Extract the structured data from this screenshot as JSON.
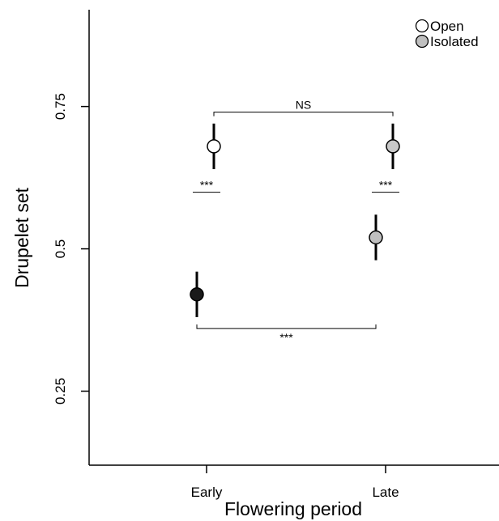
{
  "chart_data": {
    "type": "scatter",
    "xlabel": "Flowering period",
    "ylabel": "Drupelet set",
    "categories": [
      "Early",
      "Late"
    ],
    "ylim": [
      0.12,
      0.92
    ],
    "yticks": [
      0.25,
      0.5,
      0.75
    ],
    "ytick_labels": [
      "0.25",
      "0.5",
      "0.75"
    ],
    "legend": {
      "position": "top-right",
      "entries": [
        {
          "label": "Open",
          "color": "#ffffff"
        },
        {
          "label": "Isolated",
          "color": "#bfbfbf"
        }
      ]
    },
    "points": [
      {
        "category": "Early",
        "treatment": "Open",
        "y": 0.68,
        "low": 0.64,
        "high": 0.72,
        "color": "#ffffff"
      },
      {
        "category": "Early",
        "treatment": "Isolated",
        "y": 0.42,
        "low": 0.38,
        "high": 0.46,
        "color": "#1a1a1a"
      },
      {
        "category": "Late",
        "treatment": "Open",
        "y": 0.68,
        "low": 0.64,
        "high": 0.72,
        "color": "#c8c8c8"
      },
      {
        "category": "Late",
        "treatment": "Isolated",
        "y": 0.52,
        "low": 0.48,
        "high": 0.56,
        "color": "#bfbfbf"
      }
    ],
    "annotations": [
      {
        "type": "bracket-top",
        "text": "NS",
        "from": "Early",
        "to": "Late",
        "y": 0.74
      },
      {
        "type": "bracket-bottom",
        "text": "***",
        "from": "Early",
        "to": "Late",
        "y": 0.36
      },
      {
        "type": "underline",
        "text": "***",
        "category": "Early",
        "y": 0.605
      },
      {
        "type": "underline",
        "text": "***",
        "category": "Late",
        "y": 0.605
      }
    ]
  }
}
